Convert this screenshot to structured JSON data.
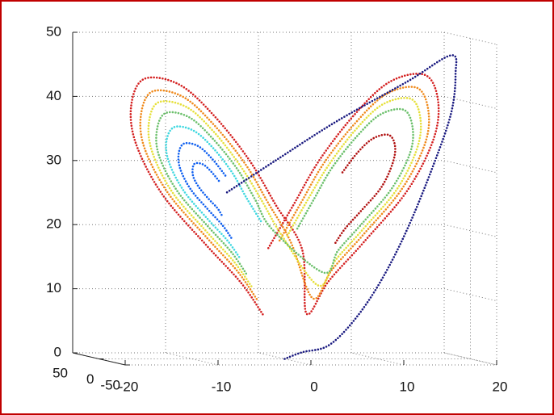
{
  "chart_data": {
    "type": "scatter3d",
    "xlim": [
      -20,
      20
    ],
    "xticks": [
      -20,
      -10,
      0,
      10,
      20
    ],
    "ylim": [
      -50,
      50
    ],
    "yticks": [
      -50,
      0,
      50
    ],
    "zlim": [
      0,
      50
    ],
    "zticks": [
      0,
      10,
      20,
      30,
      40,
      50
    ],
    "grid": true,
    "series": [
      {
        "color": "#d42020",
        "x": [
          -2.5,
          -5,
          -9,
          -14,
          -17,
          -17.5,
          -16,
          -12,
          -8,
          -4,
          -1,
          2,
          2.5,
          5,
          9,
          14,
          17,
          17.5,
          16,
          12,
          8,
          4,
          1,
          -2
        ],
        "y": [
          -2.5,
          -5,
          -9,
          -14,
          -17,
          -17.5,
          -16,
          -12,
          -8,
          -4,
          -1,
          2,
          2.5,
          5,
          9,
          14,
          17,
          17.5,
          16,
          12,
          8,
          4,
          1,
          -2
        ],
        "z": [
          7,
          12,
          18,
          26,
          34,
          40,
          44,
          43,
          38,
          31,
          24,
          17,
          7,
          12,
          18,
          26,
          34,
          40,
          44,
          43,
          38,
          31,
          24,
          17
        ]
      },
      {
        "color": "#f08a1c",
        "x": [
          -3.2,
          -5.4,
          -8.9,
          -13.3,
          -16,
          -16.4,
          -15.1,
          -11.6,
          -8.1,
          -4.5,
          -1.9,
          0.7,
          3.2,
          5.4,
          8.9,
          13.3,
          16,
          16.4,
          15.1,
          11.6,
          8.1,
          4.5,
          1.9,
          -0.7
        ],
        "y": [
          -3.2,
          -5.4,
          -8.9,
          -13.3,
          -16,
          -16.4,
          -15.1,
          -11.6,
          -8.1,
          -4.5,
          -1.9,
          0.7,
          3.2,
          5.4,
          8.9,
          13.3,
          16,
          16.4,
          15.1,
          11.6,
          8.1,
          4.5,
          1.9,
          -0.7
        ],
        "z": [
          9.4,
          13.8,
          19.1,
          26.1,
          33.2,
          38.4,
          42,
          41.1,
          36.7,
          30.5,
          24.4,
          18.2,
          9.4,
          13.8,
          19.1,
          26.1,
          33.2,
          38.4,
          42,
          41.1,
          36.7,
          30.5,
          24.4,
          18.2
        ]
      },
      {
        "color": "#e6e03a",
        "x": [
          -3.8,
          -5.8,
          -8.9,
          -12.8,
          -15.1,
          -15.5,
          -14.4,
          -11.2,
          -8.1,
          -5,
          -2.6,
          -0.3,
          3.8,
          5.8,
          8.9,
          12.8,
          15.1,
          15.5,
          14.4,
          11.2,
          8.1,
          5,
          2.6,
          0.3
        ],
        "y": [
          -3.8,
          -5.8,
          -8.9,
          -12.8,
          -15.1,
          -15.5,
          -14.4,
          -11.2,
          -8.1,
          -5,
          -2.6,
          -0.3,
          3.8,
          5.8,
          8.9,
          12.8,
          15.1,
          15.5,
          14.4,
          11.2,
          8.1,
          5,
          2.6,
          0.3
        ],
        "z": [
          11.4,
          15.3,
          20,
          26.2,
          32.5,
          37.1,
          40.3,
          39.5,
          35.6,
          30.1,
          24.7,
          19.2,
          11.4,
          15.3,
          20,
          26.2,
          32.5,
          37.1,
          40.3,
          39.5,
          35.6,
          30.1,
          24.7,
          19.2
        ]
      },
      {
        "color": "#6cc06c",
        "x": [
          -4.4,
          -6.1,
          -8.8,
          -12.2,
          -14.3,
          -14.6,
          -13.6,
          -10.9,
          -8.2,
          -5.4,
          -3.4,
          -1.4,
          4.4,
          6.1,
          8.8,
          12.2,
          14.3,
          14.6,
          13.6,
          10.9,
          8.2,
          5.4,
          3.4,
          1.4
        ],
        "y": [
          -4.4,
          -6.1,
          -8.8,
          -12.2,
          -14.3,
          -14.6,
          -13.6,
          -10.9,
          -8.2,
          -5.4,
          -3.4,
          -1.4,
          4.4,
          6.1,
          8.8,
          12.2,
          14.3,
          14.6,
          13.6,
          10.9,
          8.2,
          5.4,
          3.4,
          1.4
        ],
        "z": [
          13.4,
          16.8,
          20.9,
          26.3,
          31.8,
          35.8,
          38.6,
          37.9,
          34.5,
          29.7,
          25,
          20.2,
          13.4,
          16.8,
          20.9,
          26.3,
          31.8,
          35.8,
          38.6,
          37.9,
          34.5,
          29.7,
          25,
          20.2
        ]
      },
      {
        "color": "#b01010",
        "x": [
          5.8,
          6.9,
          8.7,
          11,
          12.3,
          12.6,
          11.9,
          10.1,
          8.3,
          6.5
        ],
        "y": [
          5.8,
          6.9,
          8.7,
          11,
          12.3,
          12.6,
          11.9,
          10.1,
          8.3,
          6.5
        ],
        "z": [
          18,
          20.2,
          22.9,
          26.5,
          30.2,
          32.9,
          34.7,
          34.2,
          32,
          28.8
        ]
      },
      {
        "color": "#40d8e0",
        "x": [
          -5.2,
          -6.6,
          -8.8,
          -11.5,
          -13.2,
          -13.5,
          -12.6,
          -10.4,
          -8.2,
          -6,
          -4.4,
          -2.7
        ],
        "y": [
          -5.2,
          -6.6,
          -8.8,
          -11.5,
          -13.2,
          -13.5,
          -12.6,
          -10.4,
          -8.2,
          -6,
          -4.4,
          -2.7
        ],
        "z": [
          16,
          18.7,
          22,
          26.4,
          30.9,
          34.2,
          36.4,
          35.8,
          33.1,
          29.2,
          25.3,
          21.5
        ]
      },
      {
        "color": "#1060f0",
        "x": [
          -6.1,
          -7.1,
          -8.7,
          -10.7,
          -11.9,
          -12.1,
          -11.5,
          -9.9,
          -8.3,
          -6.7,
          null,
          -7.2,
          -7.7,
          -8.6,
          -9.7,
          -10.4,
          -10.5,
          -10.2,
          -9.3,
          -8.4,
          -7.5
        ],
        "y": [
          -6.1,
          -7.1,
          -8.7,
          -10.7,
          -11.9,
          -12.1,
          -11.5,
          -9.9,
          -8.3,
          -6.7,
          null,
          -7.2,
          -7.7,
          -8.6,
          -9.7,
          -10.4,
          -10.5,
          -10.2,
          -9.3,
          -8.4,
          -7.5
        ],
        "z": [
          19,
          21,
          23.4,
          26.6,
          29.8,
          32.2,
          33.8,
          33.4,
          31.4,
          28.6,
          null,
          22.6,
          23.7,
          25,
          26.8,
          28.5,
          29.9,
          30.7,
          30.5,
          29.4,
          27.9
        ]
      },
      {
        "color": "#1a1a80",
        "x": [
          0,
          2,
          5,
          8,
          11,
          14,
          17,
          19,
          19.5,
          19,
          14,
          6,
          -1,
          -6.7
        ],
        "y": [
          0,
          2,
          5,
          8,
          11,
          14,
          17,
          19,
          19.5,
          19,
          14,
          6,
          -1,
          -6.7
        ],
        "z": [
          0,
          1,
          2,
          6,
          12,
          20,
          30,
          38,
          44,
          47,
          43,
          37,
          31,
          26
        ]
      }
    ]
  }
}
